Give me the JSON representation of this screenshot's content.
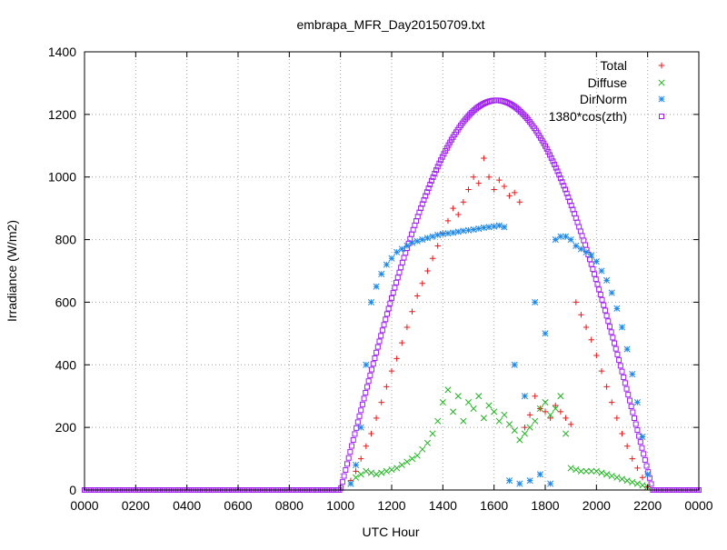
{
  "chart_data": {
    "type": "scatter",
    "title": "embrapa_MFR_Day20150709.txt",
    "xlabel": "UTC Hour",
    "ylabel": "Irradiance (W/m2)",
    "xlim": [
      0,
      24
    ],
    "ylim": [
      0,
      1400
    ],
    "x_tick_labels": [
      "0000",
      "0200",
      "0400",
      "0600",
      "0800",
      "1000",
      "1200",
      "1400",
      "1600",
      "1800",
      "2000",
      "2200",
      "0000"
    ],
    "x_tick_values": [
      0,
      2,
      4,
      6,
      8,
      10,
      12,
      14,
      16,
      18,
      20,
      22,
      24
    ],
    "y_tick_values": [
      0,
      200,
      400,
      600,
      800,
      1000,
      1200,
      1400
    ],
    "grid": true,
    "legend_position": "top-right",
    "series": [
      {
        "name": "Total",
        "marker": "plus",
        "color": "#e41a1c",
        "x": [
          10.4,
          10.6,
          10.8,
          11.0,
          11.2,
          11.4,
          11.6,
          11.8,
          12.0,
          12.2,
          12.4,
          12.6,
          12.8,
          13.0,
          13.2,
          13.4,
          13.6,
          13.8,
          14.0,
          14.2,
          14.4,
          14.6,
          14.8,
          15.0,
          15.2,
          15.4,
          15.6,
          15.8,
          16.0,
          16.2,
          16.4,
          16.6,
          16.8,
          17.0,
          17.2,
          17.4,
          17.6,
          17.8,
          18.0,
          18.2,
          18.4,
          18.6,
          18.8,
          19.0,
          19.2,
          19.4,
          19.6,
          19.8,
          20.0,
          20.2,
          20.4,
          20.6,
          20.8,
          21.0,
          21.2,
          21.4,
          21.6,
          21.8,
          22.0
        ],
        "y": [
          30,
          60,
          100,
          140,
          180,
          230,
          280,
          330,
          380,
          420,
          470,
          520,
          570,
          620,
          660,
          700,
          740,
          780,
          820,
          860,
          900,
          880,
          920,
          960,
          1000,
          980,
          1060,
          1000,
          960,
          990,
          970,
          940,
          950,
          920,
          200,
          240,
          300,
          260,
          250,
          230,
          270,
          250,
          230,
          210,
          600,
          560,
          520,
          480,
          430,
          380,
          330,
          280,
          230,
          180,
          140,
          100,
          70,
          40,
          10
        ]
      },
      {
        "name": "Diffuse",
        "marker": "cross",
        "color": "#1fb31f",
        "x": [
          10.4,
          10.6,
          10.8,
          11.0,
          11.2,
          11.4,
          11.6,
          11.8,
          12.0,
          12.2,
          12.4,
          12.6,
          12.8,
          13.0,
          13.2,
          13.4,
          13.6,
          13.8,
          14.0,
          14.2,
          14.4,
          14.6,
          14.8,
          15.0,
          15.2,
          15.4,
          15.6,
          15.8,
          16.0,
          16.2,
          16.4,
          16.6,
          16.8,
          17.0,
          17.2,
          17.4,
          17.6,
          17.8,
          18.0,
          18.2,
          18.4,
          18.6,
          18.8,
          19.0,
          19.2,
          19.4,
          19.6,
          19.8,
          20.0,
          20.2,
          20.4,
          20.6,
          20.8,
          21.0,
          21.2,
          21.4,
          21.6,
          21.8,
          22.0
        ],
        "y": [
          20,
          40,
          50,
          60,
          55,
          50,
          55,
          60,
          65,
          70,
          80,
          90,
          100,
          110,
          130,
          150,
          180,
          220,
          280,
          320,
          250,
          300,
          220,
          280,
          260,
          300,
          230,
          270,
          250,
          220,
          240,
          210,
          190,
          160,
          180,
          200,
          220,
          260,
          280,
          240,
          260,
          300,
          180,
          70,
          65,
          60,
          60,
          60,
          60,
          55,
          50,
          45,
          40,
          35,
          30,
          25,
          20,
          15,
          10
        ]
      },
      {
        "name": "DirNorm",
        "marker": "star",
        "color": "#1e88e5",
        "x": [
          10.4,
          10.6,
          10.8,
          11.0,
          11.2,
          11.4,
          11.6,
          11.8,
          12.0,
          12.2,
          12.4,
          12.6,
          12.8,
          13.0,
          13.2,
          13.4,
          13.6,
          13.8,
          14.0,
          14.2,
          14.4,
          14.6,
          14.8,
          15.0,
          15.2,
          15.4,
          15.6,
          15.8,
          16.0,
          16.2,
          16.4,
          16.6,
          16.8,
          17.0,
          17.2,
          17.4,
          17.6,
          17.8,
          18.0,
          18.2,
          18.4,
          18.6,
          18.8,
          19.0,
          19.2,
          19.4,
          19.6,
          19.8,
          20.0,
          20.2,
          20.4,
          20.6,
          20.8,
          21.0,
          21.2,
          21.4,
          21.6,
          21.8,
          22.0
        ],
        "y": [
          20,
          80,
          200,
          400,
          600,
          650,
          690,
          720,
          740,
          760,
          770,
          780,
          790,
          795,
          800,
          805,
          810,
          815,
          818,
          820,
          822,
          825,
          828,
          830,
          832,
          835,
          838,
          840,
          842,
          845,
          840,
          30,
          400,
          20,
          300,
          30,
          600,
          50,
          500,
          20,
          800,
          810,
          810,
          800,
          780,
          770,
          760,
          750,
          730,
          700,
          670,
          630,
          580,
          520,
          450,
          370,
          280,
          170,
          50
        ]
      },
      {
        "name": "1380*cos(zth)",
        "marker": "square",
        "color": "#a020f0",
        "formula": "1245 * max(0, cos(pi*(x-16.1)/12.2))"
      }
    ]
  }
}
